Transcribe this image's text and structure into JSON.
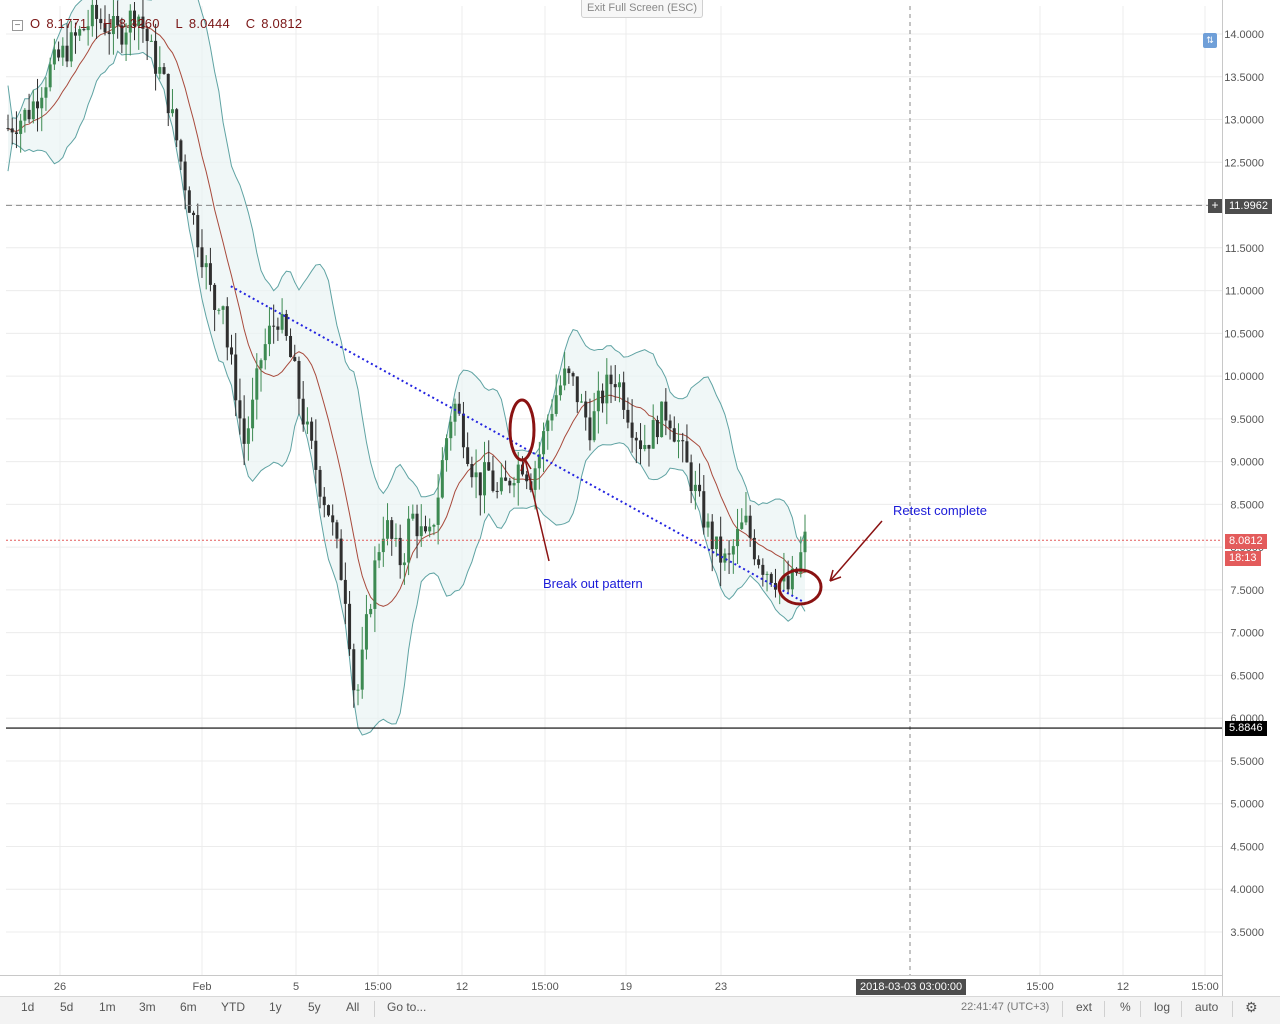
{
  "header": {
    "open_label": "O",
    "open_value": "8.1771",
    "high_label": "H",
    "high_value": "8.3260",
    "low_label": "L",
    "low_value": "8.0444",
    "close_label": "C",
    "close_value": "8.0812",
    "exit_fullscreen": "Exit Full Screen (ESC)"
  },
  "price_tags": {
    "crosshair_price": "11.9962",
    "current_price": "8.0812",
    "countdown": "18:13",
    "support_price": "5.8846",
    "crosshair_date": "2018-03-03 03:00:00"
  },
  "annotations": {
    "breakout": "Break out pattern",
    "retest": "Retest complete"
  },
  "toolbar": {
    "ranges": [
      "1d",
      "5d",
      "1m",
      "3m",
      "6m",
      "YTD",
      "1y",
      "5y",
      "All"
    ],
    "goto": "Go to...",
    "clock": "22:41:47 (UTC+3)",
    "ext": "ext",
    "percent": "%",
    "log": "log",
    "auto": "auto"
  },
  "colors": {
    "up": "#3d8a52",
    "down": "#2f2f2f",
    "band_stroke": "#5fa3a3",
    "band_fill": "#eaf4f4",
    "ma": "#a84a3c",
    "trendline": "#2323e0",
    "annotation_text": "#1a1ad8",
    "marker": "#8a1212",
    "current_price": "#e35b5b"
  },
  "chart_data": {
    "type": "candlestick",
    "y_ticks": [
      14.0,
      13.5,
      13.0,
      12.5,
      12.0,
      11.5,
      11.0,
      10.5,
      10.0,
      9.5,
      9.0,
      8.5,
      8.0,
      7.5,
      7.0,
      6.5,
      6.0,
      5.5,
      5.0,
      4.5,
      4.0,
      3.5
    ],
    "y_tick_labels": [
      "14.0000",
      "13.5000",
      "13.0000",
      "12.5000",
      "12.0000",
      "11.5000",
      "11.0000",
      "10.5000",
      "10.0000",
      "9.5000",
      "9.0000",
      "8.5000",
      "8.0000",
      "7.5000",
      "7.0000",
      "6.5000",
      "6.0000",
      "5.5000",
      "5.0000",
      "4.5000",
      "4.0000",
      "3.5000"
    ],
    "ylim": [
      2.9,
      14.35
    ],
    "x_ticks": [
      "26",
      "Feb",
      "5",
      "15:00",
      "12",
      "15:00",
      "19",
      "23",
      "15:00",
      "12",
      "15:00"
    ],
    "price_path": [
      [
        0.0,
        12.9
      ],
      [
        0.05,
        13.1
      ],
      [
        0.1,
        13.6
      ],
      [
        0.15,
        13.9
      ],
      [
        0.2,
        14.2
      ],
      [
        0.26,
        14.0
      ],
      [
        0.3,
        14.3
      ],
      [
        0.34,
        13.7
      ],
      [
        0.36,
        13.5
      ],
      [
        0.38,
        13.1
      ],
      [
        0.4,
        12.6
      ],
      [
        0.42,
        12.1
      ],
      [
        0.44,
        11.7
      ],
      [
        0.46,
        11.3
      ],
      [
        0.48,
        10.8
      ],
      [
        0.5,
        11.0
      ],
      [
        0.51,
        10.4
      ],
      [
        0.53,
        9.9
      ],
      [
        0.55,
        9.2
      ],
      [
        0.57,
        9.6
      ],
      [
        0.59,
        10.2
      ],
      [
        0.61,
        10.5
      ],
      [
        0.63,
        10.7
      ],
      [
        0.65,
        10.4
      ],
      [
        0.67,
        10.0
      ],
      [
        0.69,
        9.5
      ],
      [
        0.71,
        9.1
      ],
      [
        0.73,
        8.7
      ],
      [
        0.75,
        8.4
      ],
      [
        0.77,
        7.9
      ],
      [
        0.79,
        7.4
      ],
      [
        0.8,
        6.8
      ],
      [
        0.81,
        6.2
      ],
      [
        0.82,
        6.4
      ],
      [
        0.84,
        7.2
      ],
      [
        0.86,
        7.9
      ],
      [
        0.88,
        8.3
      ],
      [
        0.9,
        8.0
      ],
      [
        0.92,
        7.8
      ],
      [
        0.94,
        8.4
      ],
      [
        0.96,
        8.2
      ],
      [
        0.98,
        8.0
      ],
      [
        1.0,
        8.5
      ],
      [
        1.02,
        9.2
      ],
      [
        1.04,
        9.7
      ],
      [
        1.06,
        9.4
      ],
      [
        1.08,
        9.0
      ],
      [
        1.1,
        8.7
      ],
      [
        1.12,
        8.9
      ],
      [
        1.14,
        8.6
      ],
      [
        1.16,
        8.7
      ],
      [
        1.18,
        8.9
      ],
      [
        1.2,
        9.0
      ],
      [
        1.22,
        8.8
      ],
      [
        1.24,
        9.1
      ],
      [
        1.26,
        9.5
      ],
      [
        1.28,
        9.8
      ],
      [
        1.3,
        10.0
      ],
      [
        1.32,
        9.9
      ],
      [
        1.34,
        9.6
      ],
      [
        1.36,
        9.4
      ],
      [
        1.38,
        9.7
      ],
      [
        1.4,
        9.9
      ],
      [
        1.42,
        10.0
      ],
      [
        1.44,
        9.7
      ],
      [
        1.46,
        9.4
      ],
      [
        1.48,
        9.2
      ],
      [
        1.5,
        9.3
      ],
      [
        1.52,
        9.5
      ],
      [
        1.54,
        9.6
      ],
      [
        1.56,
        9.3
      ],
      [
        1.58,
        9.0
      ],
      [
        1.6,
        8.7
      ],
      [
        1.62,
        8.4
      ],
      [
        1.64,
        8.1
      ],
      [
        1.66,
        7.9
      ],
      [
        1.68,
        7.8
      ],
      [
        1.7,
        8.1
      ],
      [
        1.72,
        8.3
      ],
      [
        1.74,
        8.0
      ],
      [
        1.76,
        7.8
      ],
      [
        1.78,
        7.7
      ],
      [
        1.8,
        7.6
      ],
      [
        1.82,
        7.5
      ],
      [
        1.84,
        7.7
      ],
      [
        1.86,
        8.08
      ]
    ],
    "trendline": [
      [
        11.05,
        0.52
      ],
      [
        7.35,
        1.86
      ]
    ],
    "support_level": 5.8846,
    "crosshair_level": 11.9962,
    "current_level": 8.0812
  }
}
